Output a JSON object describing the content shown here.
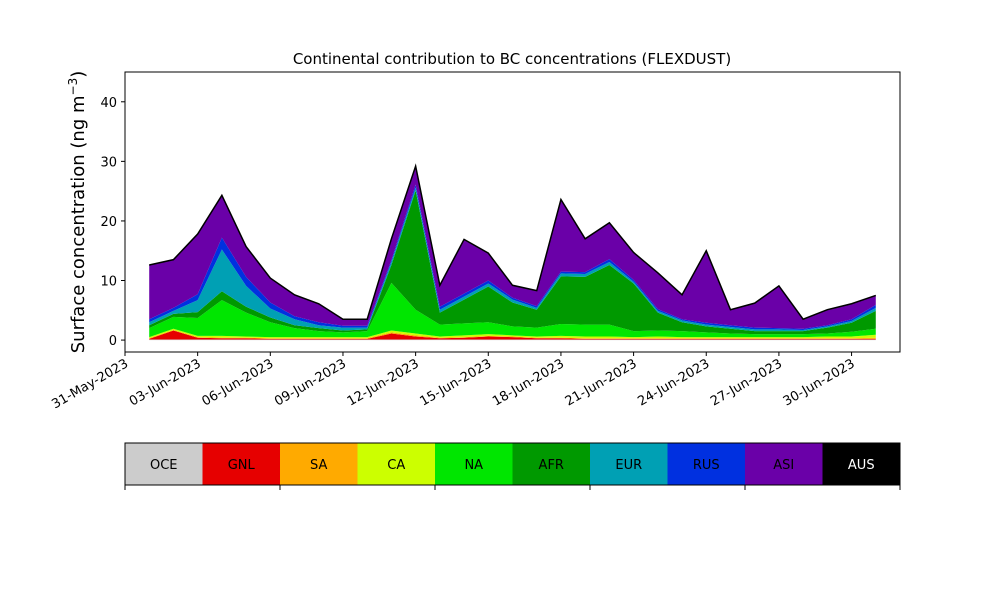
{
  "chart_data": {
    "type": "area",
    "stacked": true,
    "title": "Continental contribution to BC concentrations (FLEXDUST)",
    "ylabel": "Surface concentration (ng m",
    "ylabel_exponent": "−3",
    "ylabel_close": ")",
    "xlabel": "",
    "ylim": [
      -2,
      45
    ],
    "xlim": [
      "2023-05-31",
      "2023-07-02"
    ],
    "yticks": [
      0,
      10,
      20,
      30,
      40
    ],
    "xtick_labels": [
      "31-May-2023",
      "03-Jun-2023",
      "06-Jun-2023",
      "09-Jun-2023",
      "12-Jun-2023",
      "15-Jun-2023",
      "18-Jun-2023",
      "21-Jun-2023",
      "24-Jun-2023",
      "27-Jun-2023",
      "30-Jun-2023"
    ],
    "grid": false,
    "x": [
      "2023-06-01",
      "2023-06-02",
      "2023-06-03",
      "2023-06-04",
      "2023-06-05",
      "2023-06-06",
      "2023-06-07",
      "2023-06-08",
      "2023-06-09",
      "2023-06-10",
      "2023-06-11",
      "2023-06-12",
      "2023-06-13",
      "2023-06-14",
      "2023-06-15",
      "2023-06-16",
      "2023-06-17",
      "2023-06-18",
      "2023-06-19",
      "2023-06-20",
      "2023-06-21",
      "2023-06-22",
      "2023-06-23",
      "2023-06-24",
      "2023-06-25",
      "2023-06-26",
      "2023-06-27",
      "2023-06-28",
      "2023-06-29",
      "2023-06-30",
      "2023-07-01"
    ],
    "series": [
      {
        "name": "OCE",
        "color": "#cccccc",
        "values": [
          0.1,
          0.1,
          0.1,
          0.1,
          0.1,
          0.1,
          0.1,
          0.1,
          0.1,
          0.1,
          0.1,
          0.1,
          0.1,
          0.1,
          0.1,
          0.1,
          0.1,
          0.1,
          0.1,
          0.1,
          0.1,
          0.1,
          0.1,
          0.1,
          0.1,
          0.1,
          0.1,
          0.1,
          0.1,
          0.1,
          0.1
        ]
      },
      {
        "name": "GNL",
        "color": "#e60000",
        "values": [
          0.1,
          1.5,
          0.3,
          0.2,
          0.2,
          0.1,
          0.1,
          0.1,
          0.1,
          0.1,
          1.0,
          0.5,
          0.2,
          0.3,
          0.5,
          0.4,
          0.2,
          0.2,
          0.1,
          0.1,
          0.1,
          0.1,
          0.1,
          0.1,
          0.1,
          0.1,
          0.1,
          0.1,
          0.1,
          0.1,
          0.1
        ]
      },
      {
        "name": "SA",
        "color": "#ffaa00",
        "values": [
          0.1,
          0.1,
          0.1,
          0.1,
          0.1,
          0.1,
          0.1,
          0.1,
          0.1,
          0.1,
          0.2,
          0.2,
          0.1,
          0.1,
          0.1,
          0.1,
          0.1,
          0.1,
          0.1,
          0.1,
          0.1,
          0.1,
          0.1,
          0.1,
          0.1,
          0.1,
          0.1,
          0.1,
          0.1,
          0.1,
          0.2
        ]
      },
      {
        "name": "CA",
        "color": "#ccff00",
        "values": [
          0.2,
          0.2,
          0.2,
          0.3,
          0.2,
          0.2,
          0.2,
          0.2,
          0.2,
          0.2,
          0.3,
          0.3,
          0.2,
          0.3,
          0.3,
          0.2,
          0.2,
          0.3,
          0.3,
          0.3,
          0.2,
          0.3,
          0.2,
          0.2,
          0.2,
          0.2,
          0.2,
          0.2,
          0.3,
          0.3,
          0.5
        ]
      },
      {
        "name": "NA",
        "color": "#00e600",
        "values": [
          1.5,
          2.0,
          3.0,
          6.0,
          4.0,
          2.5,
          1.5,
          1.0,
          0.8,
          1.0,
          8.0,
          4.0,
          2.0,
          2.0,
          2.0,
          1.5,
          1.5,
          2.0,
          2.0,
          2.0,
          1.0,
          1.0,
          1.0,
          0.8,
          0.6,
          0.5,
          0.5,
          0.5,
          0.5,
          0.8,
          1.0
        ]
      },
      {
        "name": "AFR",
        "color": "#009900",
        "values": [
          0.5,
          0.5,
          1.0,
          1.5,
          1.0,
          0.8,
          0.5,
          0.5,
          0.3,
          0.3,
          3.0,
          20.0,
          2.0,
          4.0,
          6.0,
          4.0,
          3.0,
          8.0,
          8.0,
          10.0,
          8.0,
          3.0,
          1.5,
          1.0,
          0.8,
          0.5,
          0.5,
          0.5,
          1.0,
          1.5,
          3.0
        ]
      },
      {
        "name": "EUR",
        "color": "#00a0b4",
        "values": [
          0.5,
          0.5,
          2.0,
          7.0,
          3.5,
          1.5,
          1.0,
          0.5,
          0.5,
          0.3,
          0.5,
          0.5,
          0.5,
          0.5,
          0.5,
          0.5,
          0.3,
          0.5,
          0.5,
          0.5,
          0.3,
          0.3,
          0.3,
          0.3,
          0.3,
          0.3,
          0.3,
          0.2,
          0.2,
          0.3,
          0.5
        ]
      },
      {
        "name": "RUS",
        "color": "#0030e0",
        "values": [
          0.5,
          0.5,
          1.0,
          2.0,
          1.5,
          1.0,
          0.5,
          0.5,
          0.3,
          0.3,
          0.3,
          0.5,
          0.5,
          0.5,
          0.5,
          0.3,
          0.3,
          0.3,
          0.3,
          0.5,
          0.3,
          0.3,
          0.2,
          0.3,
          0.3,
          0.3,
          0.2,
          0.2,
          0.2,
          0.3,
          0.5
        ]
      },
      {
        "name": "ASI",
        "color": "#6a00a8",
        "values": [
          9.0,
          8.0,
          10.0,
          7.0,
          5.0,
          4.0,
          3.5,
          3.0,
          1.0,
          1.0,
          3.5,
          3.0,
          3.5,
          9.0,
          4.5,
          2.0,
          2.5,
          12.0,
          5.5,
          6.0,
          4.5,
          6.0,
          4.0,
          12.0,
          2.5,
          4.0,
          7.0,
          1.5,
          2.5,
          2.5,
          1.5
        ]
      },
      {
        "name": "AUS",
        "color": "#000000",
        "values": [
          0.1,
          0.1,
          0.1,
          0.1,
          0.1,
          0.1,
          0.1,
          0.1,
          0.1,
          0.1,
          0.1,
          0.1,
          0.1,
          0.1,
          0.1,
          0.1,
          0.1,
          0.1,
          0.1,
          0.1,
          0.1,
          0.1,
          0.1,
          0.1,
          0.1,
          0.1,
          0.1,
          0.1,
          0.1,
          0.1,
          0.1
        ]
      }
    ],
    "colorbar": {
      "labels": [
        "OCE",
        "GNL",
        "SA",
        "CA",
        "NA",
        "AFR",
        "EUR",
        "RUS",
        "ASI",
        "AUS"
      ],
      "colors": [
        "#cccccc",
        "#e60000",
        "#ffaa00",
        "#ccff00",
        "#00e600",
        "#009900",
        "#00a0b4",
        "#0030e0",
        "#6a00a8",
        "#000000"
      ],
      "text_colors": [
        "#000000",
        "#000000",
        "#000000",
        "#000000",
        "#000000",
        "#000000",
        "#000000",
        "#000000",
        "#000000",
        "#ffffff"
      ]
    }
  }
}
